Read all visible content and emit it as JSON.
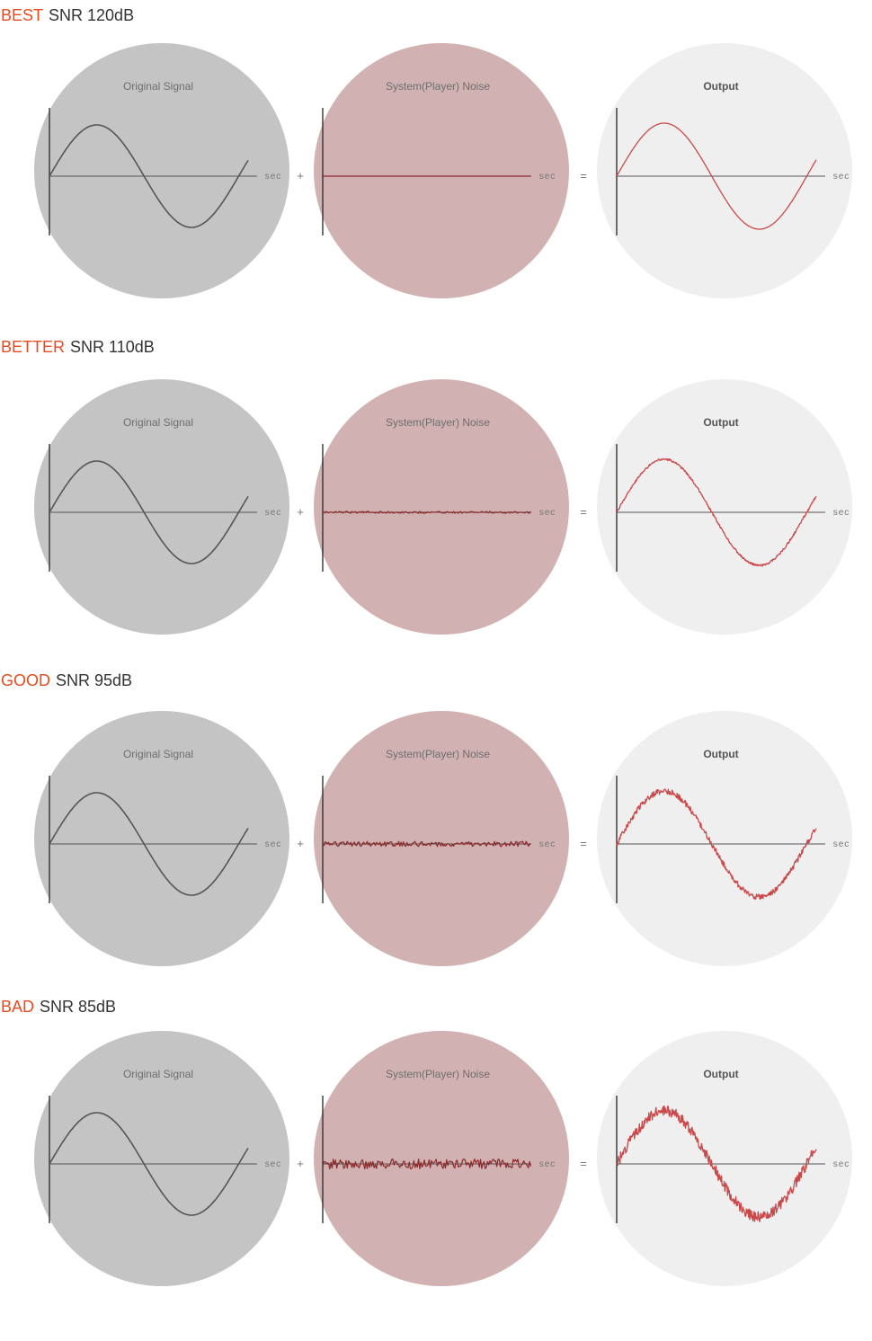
{
  "colors": {
    "grade_text": "#e84a1e",
    "snr_text": "#333333",
    "original_circle": "#c4c4c4",
    "noise_circle": "#d1b1b2",
    "output_circle": "#efefef",
    "original_wave": "#555555",
    "noise_wave": "#8c2a2a",
    "output_wave": "#c9484a",
    "axis": "#555555",
    "title_text": "#6e6e6e"
  },
  "labels": {
    "original_title": "Original Signal",
    "noise_title": "System(Player) Noise",
    "output_title": "Output",
    "axis_unit": "sec",
    "plus": "+",
    "equals": "="
  },
  "rows": [
    {
      "grade": "BEST",
      "snr": "SNR 120dB",
      "noise_level": 0
    },
    {
      "grade": "BETTER",
      "snr": "SNR 110dB",
      "noise_level": 1
    },
    {
      "grade": "GOOD",
      "snr": "SNR 95dB",
      "noise_level": 2.6
    },
    {
      "grade": "BAD",
      "snr": "SNR 85dB",
      "noise_level": 5
    }
  ]
}
